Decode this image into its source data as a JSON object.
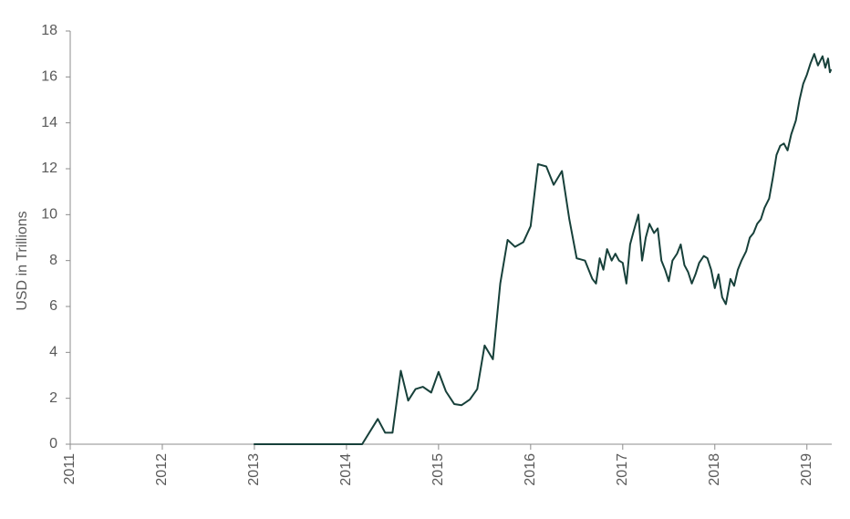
{
  "chart_data": {
    "type": "line",
    "title": "",
    "xlabel": "",
    "ylabel": "USD in Trillions",
    "xlim": [
      2011,
      2019.27
    ],
    "ylim": [
      0,
      18
    ],
    "x_ticks": [
      2011,
      2012,
      2013,
      2014,
      2015,
      2016,
      2017,
      2018,
      2019
    ],
    "x_tick_labels": [
      "2011",
      "2012",
      "2013",
      "2014",
      "2015",
      "2016",
      "2017",
      "2018",
      "2019"
    ],
    "y_ticks": [
      0,
      2,
      4,
      6,
      8,
      10,
      12,
      14,
      16,
      18
    ],
    "y_tick_labels": [
      "0",
      "2",
      "4",
      "6",
      "8",
      "10",
      "12",
      "14",
      "16",
      "18"
    ],
    "grid": false,
    "legend": "none",
    "line_color": "#17403a",
    "series": [
      {
        "x": [
          2013.0,
          2014.0,
          2014.17,
          2014.34,
          2014.42,
          2014.5,
          2014.59,
          2014.67,
          2014.75,
          2014.83,
          2014.92,
          2015.0,
          2015.08,
          2015.17,
          2015.25,
          2015.34,
          2015.42,
          2015.5,
          2015.59,
          2015.67,
          2015.75,
          2015.83,
          2015.92,
          2016.0,
          2016.08,
          2016.17,
          2016.25,
          2016.34,
          2016.42,
          2016.5,
          2016.59,
          2016.63,
          2016.67,
          2016.71,
          2016.75,
          2016.79,
          2016.83,
          2016.88,
          2016.92,
          2016.96,
          2017.0,
          2017.04,
          2017.08,
          2017.12,
          2017.17,
          2017.21,
          2017.25,
          2017.29,
          2017.34,
          2017.38,
          2017.42,
          2017.46,
          2017.5,
          2017.54,
          2017.59,
          2017.63,
          2017.67,
          2017.71,
          2017.75,
          2017.79,
          2017.83,
          2017.88,
          2017.92,
          2017.96,
          2018.0,
          2018.04,
          2018.08,
          2018.12,
          2018.17,
          2018.21,
          2018.25,
          2018.29,
          2018.34,
          2018.38,
          2018.42,
          2018.46,
          2018.5,
          2018.54,
          2018.59,
          2018.63,
          2018.67,
          2018.71,
          2018.75,
          2018.79,
          2018.83,
          2018.88,
          2018.92,
          2018.96,
          2019.0,
          2019.04,
          2019.08,
          2019.12,
          2019.17,
          2019.2,
          2019.23,
          2019.25,
          2019.26
        ],
        "y": [
          0.0,
          0.0,
          0.0,
          1.1,
          0.5,
          0.5,
          3.2,
          1.9,
          2.4,
          2.5,
          2.25,
          3.15,
          2.3,
          1.75,
          1.7,
          1.95,
          2.4,
          4.3,
          3.7,
          7.0,
          8.9,
          8.6,
          8.8,
          9.5,
          12.2,
          12.1,
          11.3,
          11.9,
          9.8,
          8.1,
          8.0,
          7.6,
          7.2,
          7.0,
          8.1,
          7.6,
          8.5,
          8.0,
          8.3,
          8.0,
          7.9,
          7.0,
          8.7,
          9.3,
          10.0,
          8.0,
          9.0,
          9.6,
          9.2,
          9.4,
          8.0,
          7.6,
          7.1,
          8.0,
          8.3,
          8.7,
          7.8,
          7.5,
          7.0,
          7.4,
          7.9,
          8.2,
          8.1,
          7.6,
          6.8,
          7.4,
          6.4,
          6.1,
          7.2,
          6.9,
          7.6,
          8.0,
          8.4,
          9.0,
          9.2,
          9.6,
          9.8,
          10.3,
          10.7,
          11.6,
          12.6,
          13.0,
          13.1,
          12.8,
          13.5,
          14.1,
          15.0,
          15.7,
          16.1,
          16.6,
          17.0,
          16.5,
          16.9,
          16.4,
          16.8,
          16.2,
          16.3
        ]
      }
    ]
  }
}
